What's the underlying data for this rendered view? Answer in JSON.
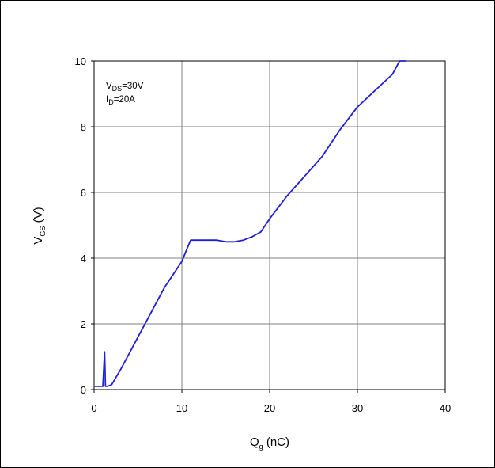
{
  "chart_data": {
    "type": "line",
    "xlabel": {
      "main": "Q",
      "sub": "g",
      "unit": " (nC)"
    },
    "ylabel": {
      "main": "V",
      "sub": "GS",
      "unit": " (V)"
    },
    "xlim": [
      0,
      40
    ],
    "ylim": [
      0,
      10
    ],
    "x_ticks": [
      "0",
      "10",
      "20",
      "30",
      "40"
    ],
    "y_ticks": [
      "0",
      "2",
      "4",
      "6",
      "8",
      "10"
    ],
    "grid": true,
    "line_color": "#1f1fd6",
    "annotations": {
      "line1": {
        "main": "V",
        "sub": "DS",
        "rest": "=30V"
      },
      "line2": {
        "main": "I",
        "sub": "D",
        "rest": "=20A"
      }
    },
    "series": [
      {
        "x": [
          0,
          1.0,
          1.2,
          1.3,
          1.5,
          2.0,
          3.0,
          4.0,
          5.0,
          6.0,
          7.0,
          8.0,
          9.0,
          10.0,
          10.6,
          11.0,
          12.0,
          13.0,
          14.0,
          15.0,
          16.0,
          17.0,
          18.0,
          19.0,
          20.0,
          22.0,
          24.0,
          26.0,
          28.0,
          30.0,
          32.0,
          34.0,
          34.8,
          35.5
        ],
        "y": [
          0.1,
          0.1,
          1.15,
          0.1,
          0.1,
          0.15,
          0.6,
          1.1,
          1.6,
          2.1,
          2.6,
          3.1,
          3.5,
          3.9,
          4.3,
          4.55,
          4.55,
          4.55,
          4.55,
          4.5,
          4.5,
          4.55,
          4.65,
          4.8,
          5.2,
          5.9,
          6.5,
          7.1,
          7.9,
          8.6,
          9.1,
          9.6,
          10.0,
          10.0
        ]
      }
    ]
  }
}
